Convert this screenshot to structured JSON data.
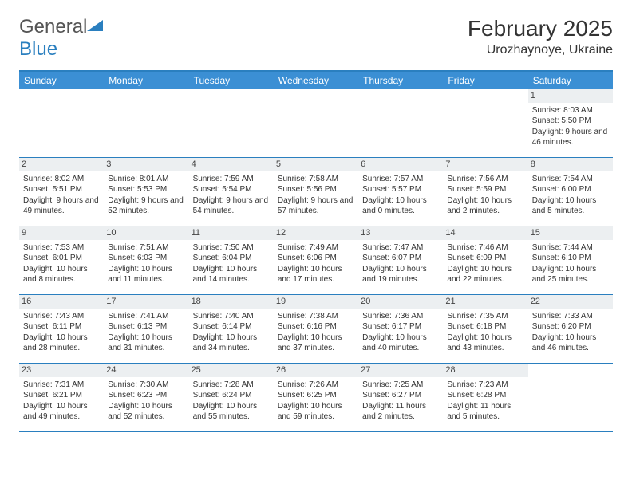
{
  "logo": {
    "text1": "General",
    "text2": "Blue"
  },
  "title": "February 2025",
  "location": "Urozhaynoye, Ukraine",
  "header_bg": "#3b8fd4",
  "border_color": "#2a7fbf",
  "daynum_bg": "#eceff1",
  "weekdays": [
    "Sunday",
    "Monday",
    "Tuesday",
    "Wednesday",
    "Thursday",
    "Friday",
    "Saturday"
  ],
  "weeks": [
    [
      {
        "n": "",
        "sr": "",
        "ss": "",
        "dl": ""
      },
      {
        "n": "",
        "sr": "",
        "ss": "",
        "dl": ""
      },
      {
        "n": "",
        "sr": "",
        "ss": "",
        "dl": ""
      },
      {
        "n": "",
        "sr": "",
        "ss": "",
        "dl": ""
      },
      {
        "n": "",
        "sr": "",
        "ss": "",
        "dl": ""
      },
      {
        "n": "",
        "sr": "",
        "ss": "",
        "dl": ""
      },
      {
        "n": "1",
        "sr": "Sunrise: 8:03 AM",
        "ss": "Sunset: 5:50 PM",
        "dl": "Daylight: 9 hours and 46 minutes."
      }
    ],
    [
      {
        "n": "2",
        "sr": "Sunrise: 8:02 AM",
        "ss": "Sunset: 5:51 PM",
        "dl": "Daylight: 9 hours and 49 minutes."
      },
      {
        "n": "3",
        "sr": "Sunrise: 8:01 AM",
        "ss": "Sunset: 5:53 PM",
        "dl": "Daylight: 9 hours and 52 minutes."
      },
      {
        "n": "4",
        "sr": "Sunrise: 7:59 AM",
        "ss": "Sunset: 5:54 PM",
        "dl": "Daylight: 9 hours and 54 minutes."
      },
      {
        "n": "5",
        "sr": "Sunrise: 7:58 AM",
        "ss": "Sunset: 5:56 PM",
        "dl": "Daylight: 9 hours and 57 minutes."
      },
      {
        "n": "6",
        "sr": "Sunrise: 7:57 AM",
        "ss": "Sunset: 5:57 PM",
        "dl": "Daylight: 10 hours and 0 minutes."
      },
      {
        "n": "7",
        "sr": "Sunrise: 7:56 AM",
        "ss": "Sunset: 5:59 PM",
        "dl": "Daylight: 10 hours and 2 minutes."
      },
      {
        "n": "8",
        "sr": "Sunrise: 7:54 AM",
        "ss": "Sunset: 6:00 PM",
        "dl": "Daylight: 10 hours and 5 minutes."
      }
    ],
    [
      {
        "n": "9",
        "sr": "Sunrise: 7:53 AM",
        "ss": "Sunset: 6:01 PM",
        "dl": "Daylight: 10 hours and 8 minutes."
      },
      {
        "n": "10",
        "sr": "Sunrise: 7:51 AM",
        "ss": "Sunset: 6:03 PM",
        "dl": "Daylight: 10 hours and 11 minutes."
      },
      {
        "n": "11",
        "sr": "Sunrise: 7:50 AM",
        "ss": "Sunset: 6:04 PM",
        "dl": "Daylight: 10 hours and 14 minutes."
      },
      {
        "n": "12",
        "sr": "Sunrise: 7:49 AM",
        "ss": "Sunset: 6:06 PM",
        "dl": "Daylight: 10 hours and 17 minutes."
      },
      {
        "n": "13",
        "sr": "Sunrise: 7:47 AM",
        "ss": "Sunset: 6:07 PM",
        "dl": "Daylight: 10 hours and 19 minutes."
      },
      {
        "n": "14",
        "sr": "Sunrise: 7:46 AM",
        "ss": "Sunset: 6:09 PM",
        "dl": "Daylight: 10 hours and 22 minutes."
      },
      {
        "n": "15",
        "sr": "Sunrise: 7:44 AM",
        "ss": "Sunset: 6:10 PM",
        "dl": "Daylight: 10 hours and 25 minutes."
      }
    ],
    [
      {
        "n": "16",
        "sr": "Sunrise: 7:43 AM",
        "ss": "Sunset: 6:11 PM",
        "dl": "Daylight: 10 hours and 28 minutes."
      },
      {
        "n": "17",
        "sr": "Sunrise: 7:41 AM",
        "ss": "Sunset: 6:13 PM",
        "dl": "Daylight: 10 hours and 31 minutes."
      },
      {
        "n": "18",
        "sr": "Sunrise: 7:40 AM",
        "ss": "Sunset: 6:14 PM",
        "dl": "Daylight: 10 hours and 34 minutes."
      },
      {
        "n": "19",
        "sr": "Sunrise: 7:38 AM",
        "ss": "Sunset: 6:16 PM",
        "dl": "Daylight: 10 hours and 37 minutes."
      },
      {
        "n": "20",
        "sr": "Sunrise: 7:36 AM",
        "ss": "Sunset: 6:17 PM",
        "dl": "Daylight: 10 hours and 40 minutes."
      },
      {
        "n": "21",
        "sr": "Sunrise: 7:35 AM",
        "ss": "Sunset: 6:18 PM",
        "dl": "Daylight: 10 hours and 43 minutes."
      },
      {
        "n": "22",
        "sr": "Sunrise: 7:33 AM",
        "ss": "Sunset: 6:20 PM",
        "dl": "Daylight: 10 hours and 46 minutes."
      }
    ],
    [
      {
        "n": "23",
        "sr": "Sunrise: 7:31 AM",
        "ss": "Sunset: 6:21 PM",
        "dl": "Daylight: 10 hours and 49 minutes."
      },
      {
        "n": "24",
        "sr": "Sunrise: 7:30 AM",
        "ss": "Sunset: 6:23 PM",
        "dl": "Daylight: 10 hours and 52 minutes."
      },
      {
        "n": "25",
        "sr": "Sunrise: 7:28 AM",
        "ss": "Sunset: 6:24 PM",
        "dl": "Daylight: 10 hours and 55 minutes."
      },
      {
        "n": "26",
        "sr": "Sunrise: 7:26 AM",
        "ss": "Sunset: 6:25 PM",
        "dl": "Daylight: 10 hours and 59 minutes."
      },
      {
        "n": "27",
        "sr": "Sunrise: 7:25 AM",
        "ss": "Sunset: 6:27 PM",
        "dl": "Daylight: 11 hours and 2 minutes."
      },
      {
        "n": "28",
        "sr": "Sunrise: 7:23 AM",
        "ss": "Sunset: 6:28 PM",
        "dl": "Daylight: 11 hours and 5 minutes."
      },
      {
        "n": "",
        "sr": "",
        "ss": "",
        "dl": ""
      }
    ]
  ]
}
